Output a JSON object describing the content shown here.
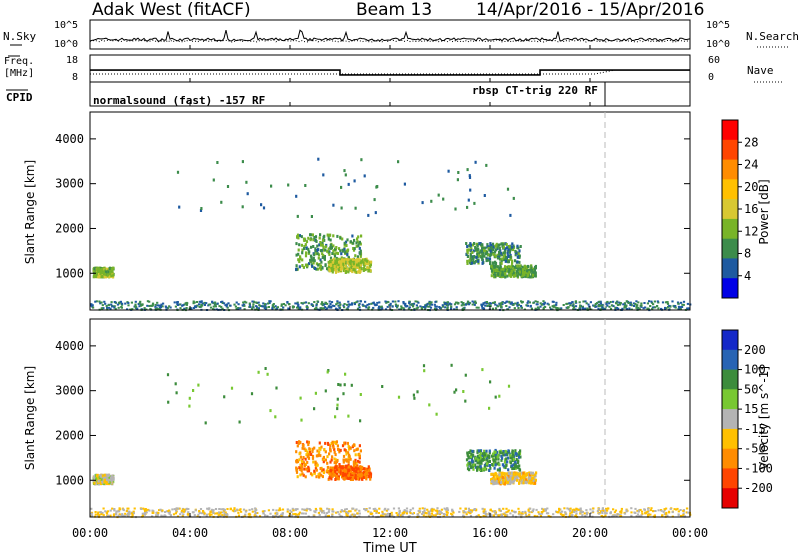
{
  "chart_data": {
    "type": "heatmap",
    "title": "Adak West (fitACF)",
    "beam": "Beam 13",
    "date_range": "14/Apr/2016 - 15/Apr/2016",
    "xlabel": "Time UT",
    "x_tick_labels": [
      "00:00",
      "04:00",
      "08:00",
      "12:00",
      "16:00",
      "20:00",
      "00:00"
    ],
    "xlim_hours": [
      0,
      24
    ],
    "marker_line_hour": 20.6,
    "noise_panel": {
      "left_label": "N.Sky",
      "right_label": "N.Search",
      "left_ticks": [
        "10^5",
        "10^0"
      ],
      "right_ticks": [
        "10^5",
        "10^0"
      ]
    },
    "freq_panel": {
      "left_label_line1": "Freq.",
      "left_label_line2": "[MHz]",
      "left_ticks": [
        "18",
        "8"
      ],
      "right_label": "Nave",
      "right_ticks": [
        "60",
        "0"
      ],
      "freq_steps": [
        {
          "from": 0,
          "to": 10,
          "value": 12.5
        },
        {
          "from": 10,
          "to": 18,
          "value": 10.3
        },
        {
          "from": 18,
          "to": 24,
          "value": 12.5
        }
      ]
    },
    "cpid_panel": {
      "label": "CPID",
      "segments": [
        {
          "label": "normalsound (fast) -157 RF",
          "start_hour": 0
        },
        {
          "label": "rbsp CT-trig 220 RF",
          "start_hour": 20.6
        }
      ]
    },
    "power_panel": {
      "ylabel": "Slant Range [km]",
      "y_ticks": [
        1000,
        2000,
        3000,
        4000
      ],
      "ylim": [
        180,
        4600
      ],
      "colorbar_label": "Power [dB]",
      "colorbar_ticks": [
        "28",
        "24",
        "20",
        "16",
        "12",
        "8",
        "4"
      ],
      "colorbar_colors": [
        "#ff0000",
        "#ff4500",
        "#ff8c00",
        "#ffc000",
        "#d8c832",
        "#78b428",
        "#3c8c4b",
        "#1e5aa0",
        "#0000e6"
      ]
    },
    "velocity_panel": {
      "ylabel": "Slant Range [km]",
      "y_ticks": [
        1000,
        2000,
        3000,
        4000
      ],
      "ylim": [
        180,
        4600
      ],
      "colorbar_label": "Velocity [m s^-1]",
      "colorbar_ticks": [
        "200",
        "100",
        "50",
        "15",
        "-15",
        "-50",
        "-100",
        "-200"
      ],
      "colorbar_colors": [
        "#1428c8",
        "#2864b4",
        "#3c8c3c",
        "#78c832",
        "#b4b4b4",
        "#ffc000",
        "#ff8c00",
        "#ff4500",
        "#e60000"
      ]
    },
    "echo_regions": [
      {
        "name": "near-range",
        "hours": [
          0,
          24
        ],
        "range_km": [
          200,
          400
        ],
        "power": 6,
        "velocity": -20
      },
      {
        "name": "early",
        "hours": [
          0.1,
          0.9
        ],
        "range_km": [
          950,
          1150
        ],
        "power": 12,
        "velocity": 0
      },
      {
        "name": "morning-high",
        "hours": [
          8.2,
          10.8
        ],
        "range_km": [
          1100,
          1900
        ],
        "power": 9,
        "velocity": -100
      },
      {
        "name": "morning-core",
        "hours": [
          9.5,
          11.2
        ],
        "range_km": [
          1050,
          1350
        ],
        "power": 14,
        "velocity": -120
      },
      {
        "name": "afternoon",
        "hours": [
          15.0,
          17.2
        ],
        "range_km": [
          1250,
          1700
        ],
        "power": 8,
        "velocity": 100
      },
      {
        "name": "afternoon-tail",
        "hours": [
          16.0,
          17.8
        ],
        "range_km": [
          950,
          1200
        ],
        "power": 10,
        "velocity": -40
      },
      {
        "name": "scattered-far",
        "hours": [
          3,
          17
        ],
        "range_km": [
          2300,
          3600
        ],
        "power": 6,
        "velocity": 80
      }
    ]
  }
}
